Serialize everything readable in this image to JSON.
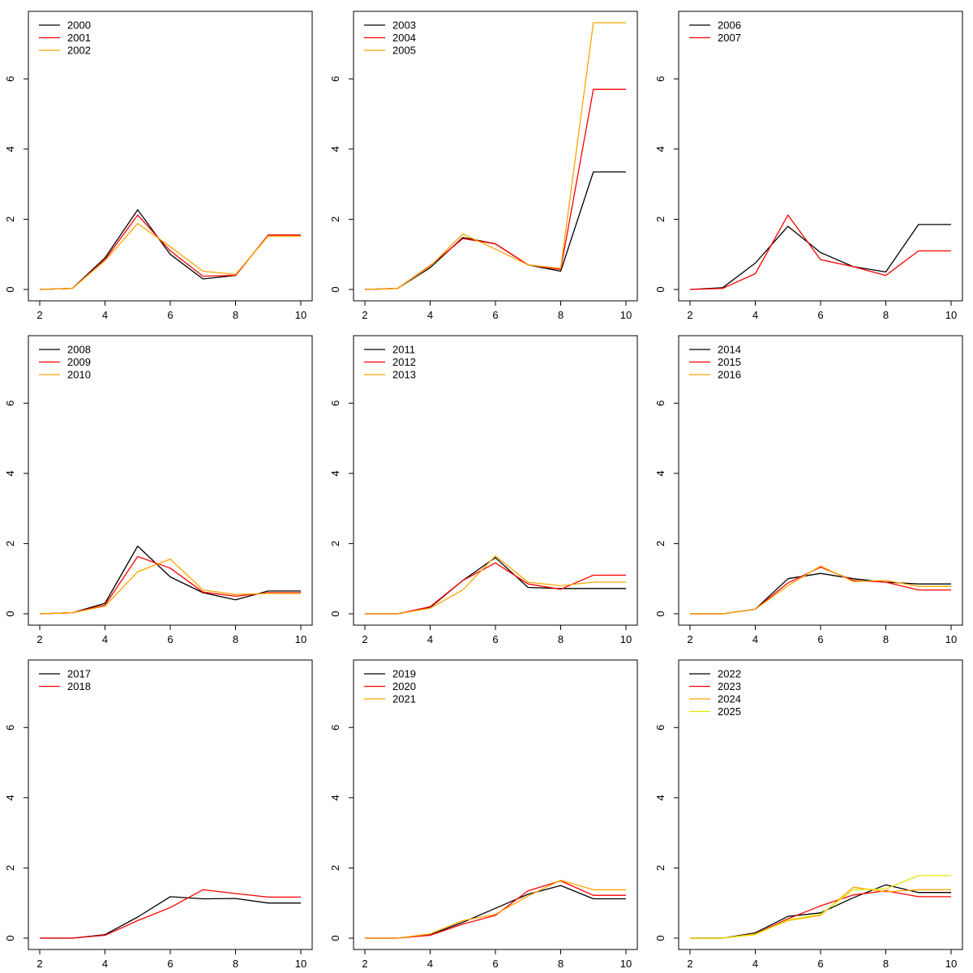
{
  "chart_data": [
    {
      "type": "line",
      "x": [
        2,
        3,
        4,
        5,
        6,
        7,
        8,
        9,
        10
      ],
      "xlim": [
        2,
        10
      ],
      "ylim": [
        0,
        7.6
      ],
      "xticks": [
        "2",
        "4",
        "6",
        "8",
        "10"
      ],
      "yticks": [
        "0",
        "2",
        "4",
        "6"
      ],
      "legend_position": "top-left",
      "series": [
        {
          "name": "2000",
          "color": "#000000",
          "values": [
            0,
            0.03,
            0.9,
            2.27,
            1.0,
            0.3,
            0.4,
            1.55,
            1.55
          ]
        },
        {
          "name": "2001",
          "color": "#ff0000",
          "values": [
            0,
            0.03,
            0.85,
            2.12,
            1.1,
            0.38,
            0.4,
            1.55,
            1.55
          ]
        },
        {
          "name": "2002",
          "color": "#ffa500",
          "values": [
            0,
            0.03,
            0.82,
            1.88,
            1.22,
            0.52,
            0.43,
            1.52,
            1.52
          ]
        }
      ]
    },
    {
      "type": "line",
      "x": [
        2,
        3,
        4,
        5,
        6,
        7,
        8,
        9,
        10
      ],
      "xlim": [
        2,
        10
      ],
      "ylim": [
        0,
        7.6
      ],
      "xticks": [
        "2",
        "4",
        "6",
        "8",
        "10"
      ],
      "yticks": [
        "0",
        "2",
        "4",
        "6"
      ],
      "legend_position": "top-left",
      "series": [
        {
          "name": "2003",
          "color": "#000000",
          "values": [
            0,
            0.03,
            0.62,
            1.48,
            1.3,
            0.7,
            0.52,
            3.35,
            3.35
          ]
        },
        {
          "name": "2004",
          "color": "#ff0000",
          "values": [
            0,
            0.03,
            0.68,
            1.45,
            1.3,
            0.7,
            0.57,
            5.7,
            5.7
          ]
        },
        {
          "name": "2005",
          "color": "#ffa500",
          "values": [
            0,
            0.03,
            0.66,
            1.58,
            1.15,
            0.7,
            0.6,
            7.6,
            7.6
          ]
        }
      ]
    },
    {
      "type": "line",
      "x": [
        2,
        3,
        4,
        5,
        6,
        7,
        8,
        9,
        10
      ],
      "xlim": [
        2,
        10
      ],
      "ylim": [
        0,
        7.6
      ],
      "xticks": [
        "2",
        "4",
        "6",
        "8",
        "10"
      ],
      "yticks": [
        "0",
        "2",
        "4",
        "6"
      ],
      "legend_position": "top-left",
      "series": [
        {
          "name": "2006",
          "color": "#000000",
          "values": [
            0,
            0.05,
            0.75,
            1.8,
            1.05,
            0.65,
            0.5,
            1.85,
            1.85
          ]
        },
        {
          "name": "2007",
          "color": "#ff0000",
          "values": [
            0,
            0.03,
            0.45,
            2.12,
            0.85,
            0.65,
            0.4,
            1.1,
            1.1
          ]
        }
      ]
    },
    {
      "type": "line",
      "x": [
        2,
        3,
        4,
        5,
        6,
        7,
        8,
        9,
        10
      ],
      "xlim": [
        2,
        10
      ],
      "ylim": [
        0,
        7.6
      ],
      "xticks": [
        "2",
        "4",
        "6",
        "8",
        "10"
      ],
      "yticks": [
        "0",
        "2",
        "4",
        "6"
      ],
      "legend_position": "top-left",
      "series": [
        {
          "name": "2008",
          "color": "#000000",
          "values": [
            0,
            0.03,
            0.3,
            1.93,
            1.05,
            0.6,
            0.4,
            0.65,
            0.65
          ]
        },
        {
          "name": "2009",
          "color": "#ff0000",
          "values": [
            0,
            0.03,
            0.25,
            1.63,
            1.3,
            0.62,
            0.5,
            0.6,
            0.6
          ]
        },
        {
          "name": "2010",
          "color": "#ffa500",
          "values": [
            0,
            0.03,
            0.22,
            1.2,
            1.56,
            0.68,
            0.55,
            0.58,
            0.58
          ]
        }
      ]
    },
    {
      "type": "line",
      "x": [
        2,
        3,
        4,
        5,
        6,
        7,
        8,
        9,
        10
      ],
      "xlim": [
        2,
        10
      ],
      "ylim": [
        0,
        7.6
      ],
      "xticks": [
        "2",
        "4",
        "6",
        "8",
        "10"
      ],
      "yticks": [
        "0",
        "2",
        "4",
        "6"
      ],
      "legend_position": "top-left",
      "series": [
        {
          "name": "2011",
          "color": "#000000",
          "values": [
            0,
            0,
            0.18,
            0.95,
            1.6,
            0.75,
            0.72,
            0.72,
            0.72
          ]
        },
        {
          "name": "2012",
          "color": "#ff0000",
          "values": [
            0,
            0,
            0.2,
            0.95,
            1.45,
            0.85,
            0.7,
            1.1,
            1.1
          ]
        },
        {
          "name": "2013",
          "color": "#ffa500",
          "values": [
            0,
            0,
            0.16,
            0.68,
            1.65,
            0.9,
            0.8,
            0.9,
            0.9
          ]
        }
      ]
    },
    {
      "type": "line",
      "x": [
        2,
        3,
        4,
        5,
        6,
        7,
        8,
        9,
        10
      ],
      "xlim": [
        2,
        10
      ],
      "ylim": [
        0,
        7.6
      ],
      "xticks": [
        "2",
        "4",
        "6",
        "8",
        "10"
      ],
      "yticks": [
        "0",
        "2",
        "4",
        "6"
      ],
      "legend_position": "top-left",
      "series": [
        {
          "name": "2014",
          "color": "#000000",
          "values": [
            0,
            0,
            0.13,
            1.0,
            1.15,
            1.0,
            0.9,
            0.85,
            0.85
          ]
        },
        {
          "name": "2015",
          "color": "#ff0000",
          "values": [
            0,
            0,
            0.13,
            0.88,
            1.33,
            0.95,
            0.9,
            0.68,
            0.68
          ]
        },
        {
          "name": "2016",
          "color": "#ffa500",
          "values": [
            0,
            0,
            0.13,
            0.8,
            1.36,
            0.92,
            0.95,
            0.78,
            0.78
          ]
        }
      ]
    },
    {
      "type": "line",
      "x": [
        2,
        3,
        4,
        5,
        6,
        7,
        8,
        9,
        10
      ],
      "xlim": [
        2,
        10
      ],
      "ylim": [
        0,
        7.6
      ],
      "xticks": [
        "2",
        "4",
        "6",
        "8",
        "10"
      ],
      "yticks": [
        "0",
        "2",
        "4",
        "6"
      ],
      "legend_position": "top-left",
      "series": [
        {
          "name": "2017",
          "color": "#000000",
          "values": [
            0,
            0,
            0.1,
            0.6,
            1.18,
            1.12,
            1.13,
            1.0,
            1.0
          ]
        },
        {
          "name": "2018",
          "color": "#ff0000",
          "values": [
            0,
            0,
            0.08,
            0.5,
            0.87,
            1.38,
            1.27,
            1.17,
            1.17
          ]
        }
      ]
    },
    {
      "type": "line",
      "x": [
        2,
        3,
        4,
        5,
        6,
        7,
        8,
        9,
        10
      ],
      "xlim": [
        2,
        10
      ],
      "ylim": [
        0,
        7.6
      ],
      "xticks": [
        "2",
        "4",
        "6",
        "8",
        "10"
      ],
      "yticks": [
        "0",
        "2",
        "4",
        "6"
      ],
      "legend_position": "top-left",
      "series": [
        {
          "name": "2019",
          "color": "#000000",
          "values": [
            0,
            0,
            0.1,
            0.45,
            0.85,
            1.25,
            1.5,
            1.12,
            1.12
          ]
        },
        {
          "name": "2020",
          "color": "#ff0000",
          "values": [
            0,
            0,
            0.08,
            0.4,
            0.65,
            1.35,
            1.63,
            1.22,
            1.22
          ]
        },
        {
          "name": "2021",
          "color": "#ffa500",
          "values": [
            0,
            0,
            0.12,
            0.5,
            0.68,
            1.2,
            1.65,
            1.38,
            1.38
          ]
        }
      ]
    },
    {
      "type": "line",
      "x": [
        2,
        3,
        4,
        5,
        6,
        7,
        8,
        9,
        10
      ],
      "xlim": [
        2,
        10
      ],
      "ylim": [
        0,
        7.6
      ],
      "xticks": [
        "2",
        "4",
        "6",
        "8",
        "10"
      ],
      "yticks": [
        "0",
        "2",
        "4",
        "6"
      ],
      "legend_position": "top-left",
      "series": [
        {
          "name": "2022",
          "color": "#000000",
          "values": [
            0,
            0,
            0.15,
            0.62,
            0.72,
            1.15,
            1.52,
            1.3,
            1.3
          ]
        },
        {
          "name": "2023",
          "color": "#ff0000",
          "values": [
            0,
            0,
            0.12,
            0.55,
            0.92,
            1.23,
            1.35,
            1.18,
            1.18
          ]
        },
        {
          "name": "2024",
          "color": "#ffa500",
          "values": [
            0,
            0,
            0.12,
            0.5,
            0.65,
            1.45,
            1.32,
            1.38,
            1.38
          ]
        },
        {
          "name": "2025",
          "color": "#e6e600",
          "values": [
            0,
            0,
            0.1,
            0.52,
            0.68,
            1.38,
            1.4,
            1.78,
            1.78
          ]
        }
      ]
    }
  ]
}
